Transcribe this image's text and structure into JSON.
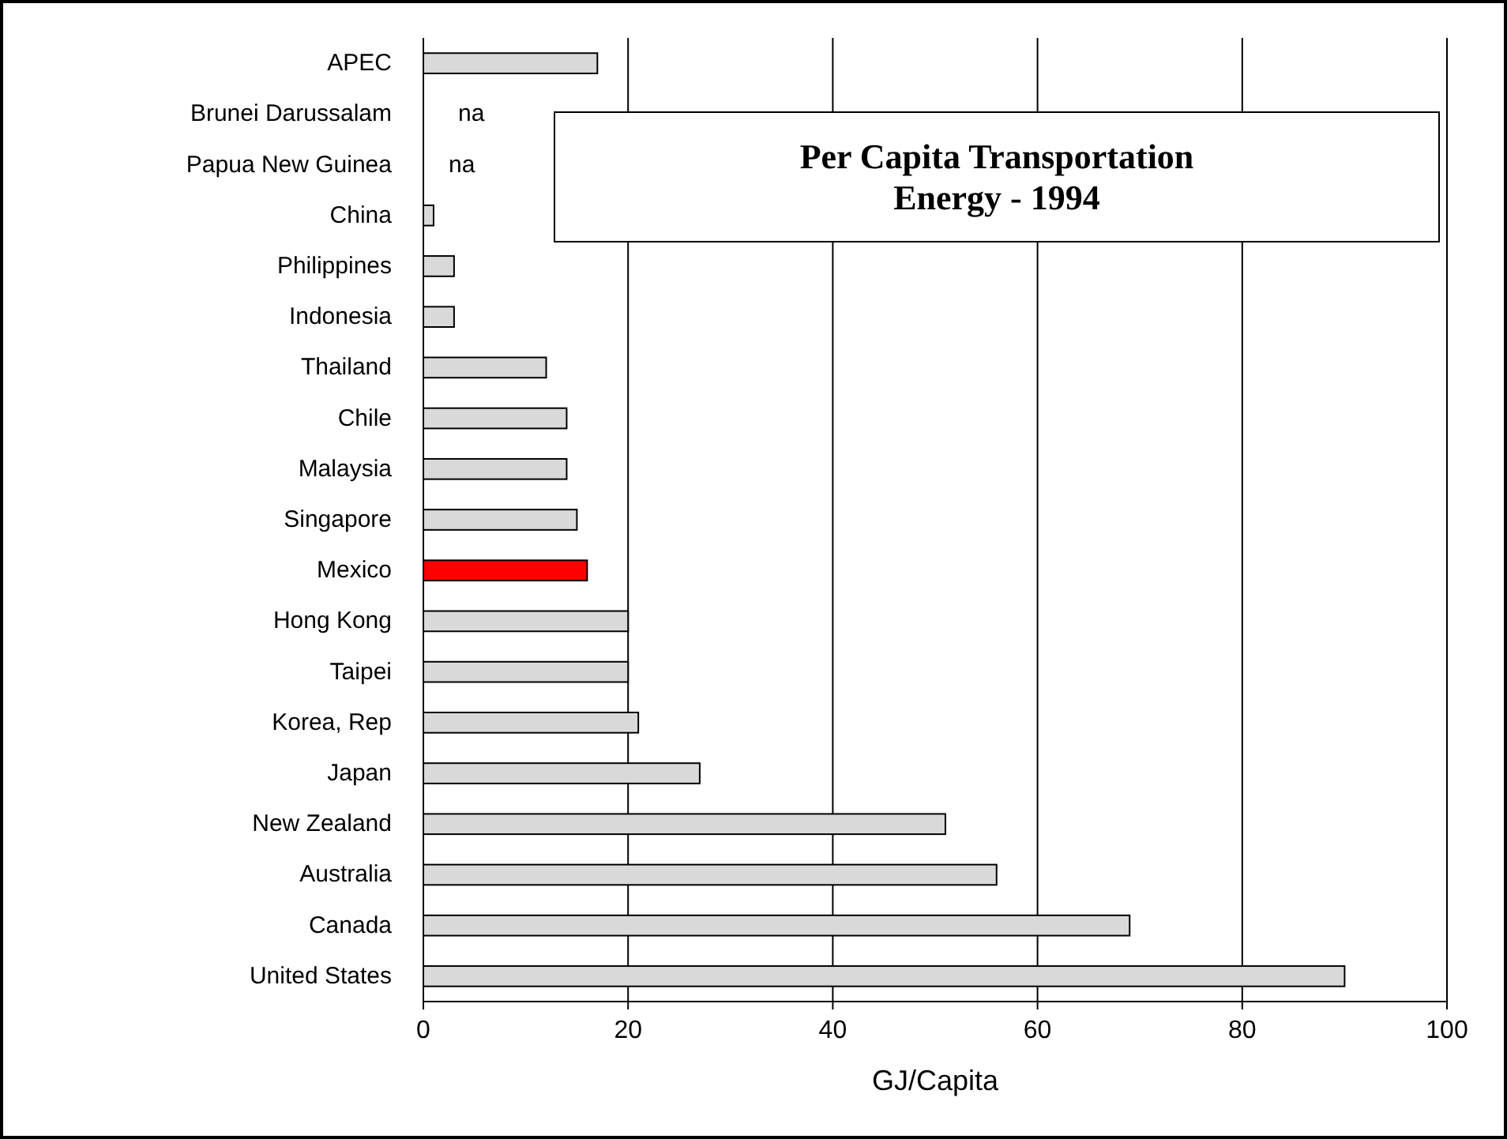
{
  "chart_data": {
    "type": "bar",
    "orientation": "horizontal",
    "title": "Per Capita Transportation\nEnergy - 1994",
    "xlabel": "GJ/Capita",
    "categories": [
      "APEC",
      "Brunei Darussalam",
      "Papua New Guinea",
      "China",
      "Philippines",
      "Indonesia",
      "Thailand",
      "Chile",
      "Malaysia",
      "Singapore",
      "Mexico",
      "Hong Kong",
      "Taipei",
      "Korea, Rep",
      "Japan",
      "New Zealand",
      "Australia",
      "Canada",
      "United States"
    ],
    "values": [
      17,
      null,
      null,
      1,
      3,
      3,
      12,
      14,
      14,
      15,
      16,
      20,
      20,
      21,
      27,
      51,
      56,
      69,
      90
    ],
    "value_labels": [
      null,
      "na",
      "na",
      null,
      null,
      null,
      null,
      null,
      null,
      null,
      null,
      null,
      null,
      null,
      null,
      null,
      null,
      null,
      null
    ],
    "colors": [
      "#d9d9d9",
      null,
      null,
      "#d9d9d9",
      "#d9d9d9",
      "#d9d9d9",
      "#d9d9d9",
      "#d9d9d9",
      "#d9d9d9",
      "#d9d9d9",
      "#ff0000",
      "#d9d9d9",
      "#d9d9d9",
      "#d9d9d9",
      "#d9d9d9",
      "#d9d9d9",
      "#d9d9d9",
      "#d9d9d9",
      "#d9d9d9"
    ],
    "xlim": [
      0,
      100
    ],
    "xticks": [
      0,
      20,
      40,
      60,
      80,
      100
    ],
    "grid": "x"
  }
}
